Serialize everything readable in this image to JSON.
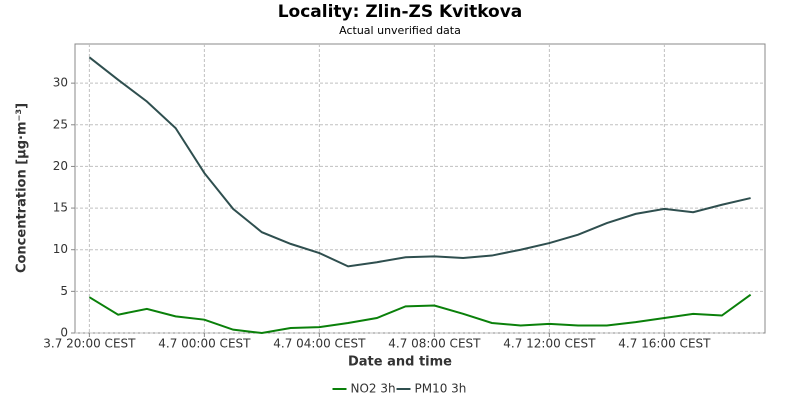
{
  "chart_data": {
    "type": "line",
    "title": "Locality: Zlin-ZS Kvitkova",
    "subtitle": "Actual unverified data",
    "x_label": "Date and time",
    "y_label": "Concentration [µg·m⁻³]",
    "categories": [
      "3.7 20:00 CEST",
      null,
      null,
      null,
      "4.7 00:00 CEST",
      null,
      null,
      null,
      "4.7 04:00 CEST",
      null,
      null,
      null,
      "4.7 08:00 CEST",
      null,
      null,
      null,
      "4.7 12:00 CEST",
      null,
      null,
      null,
      "4.7 16:00 CEST",
      null,
      null,
      null
    ],
    "series": [
      {
        "name": "NO2 3h",
        "color": "#0a800a",
        "values": [
          4.3,
          2.2,
          2.9,
          2.0,
          1.6,
          0.4,
          0.0,
          0.6,
          0.7,
          1.2,
          1.8,
          3.2,
          3.3,
          2.3,
          1.2,
          0.9,
          1.1,
          0.9,
          0.9,
          1.3,
          1.8,
          2.3,
          2.1,
          4.6
        ]
      },
      {
        "name": "PM10 3h",
        "color": "#2f4f4f",
        "values": [
          33.1,
          30.4,
          27.8,
          24.6,
          19.2,
          14.9,
          12.1,
          10.7,
          9.6,
          8.0,
          8.5,
          9.1,
          9.2,
          9.0,
          9.3,
          10.0,
          10.8,
          11.8,
          13.2,
          14.3,
          14.9,
          14.5,
          15.4,
          16.2
        ]
      }
    ],
    "ylim": [
      0,
      34.7
    ],
    "yticks": [
      0,
      5,
      10,
      15,
      20,
      25,
      30
    ],
    "grid": true,
    "legend": "bottom"
  }
}
